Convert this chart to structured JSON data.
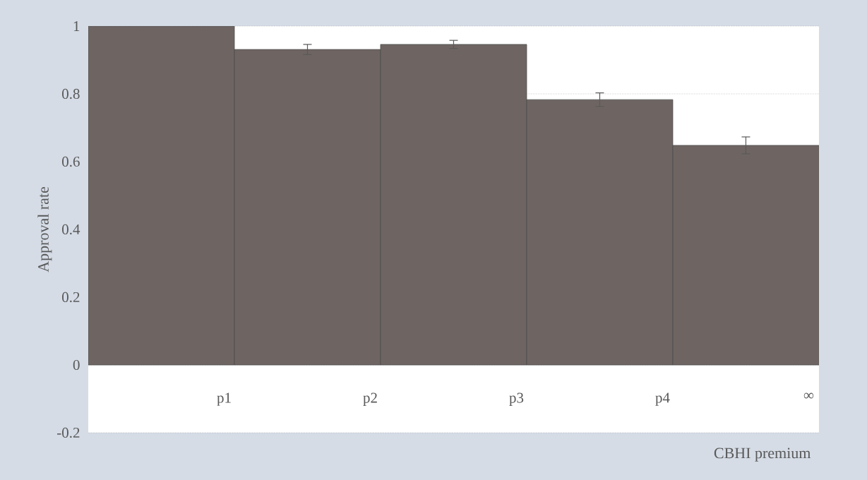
{
  "chart_data": {
    "type": "bar",
    "xlabel": "CBHI premium",
    "ylabel": "Approval rate",
    "categories": [
      "p1",
      "p2",
      "p3",
      "p4",
      "∞"
    ],
    "values": [
      1.0,
      0.931,
      0.946,
      0.783,
      0.648
    ],
    "errors": [
      null,
      0.015,
      0.012,
      0.02,
      0.025
    ],
    "color": "#6e6562",
    "ylim": [
      -0.2,
      1
    ],
    "yticks": [
      -0.2,
      0,
      0.2,
      0.4,
      0.6,
      0.8,
      1
    ],
    "grid": "y"
  }
}
